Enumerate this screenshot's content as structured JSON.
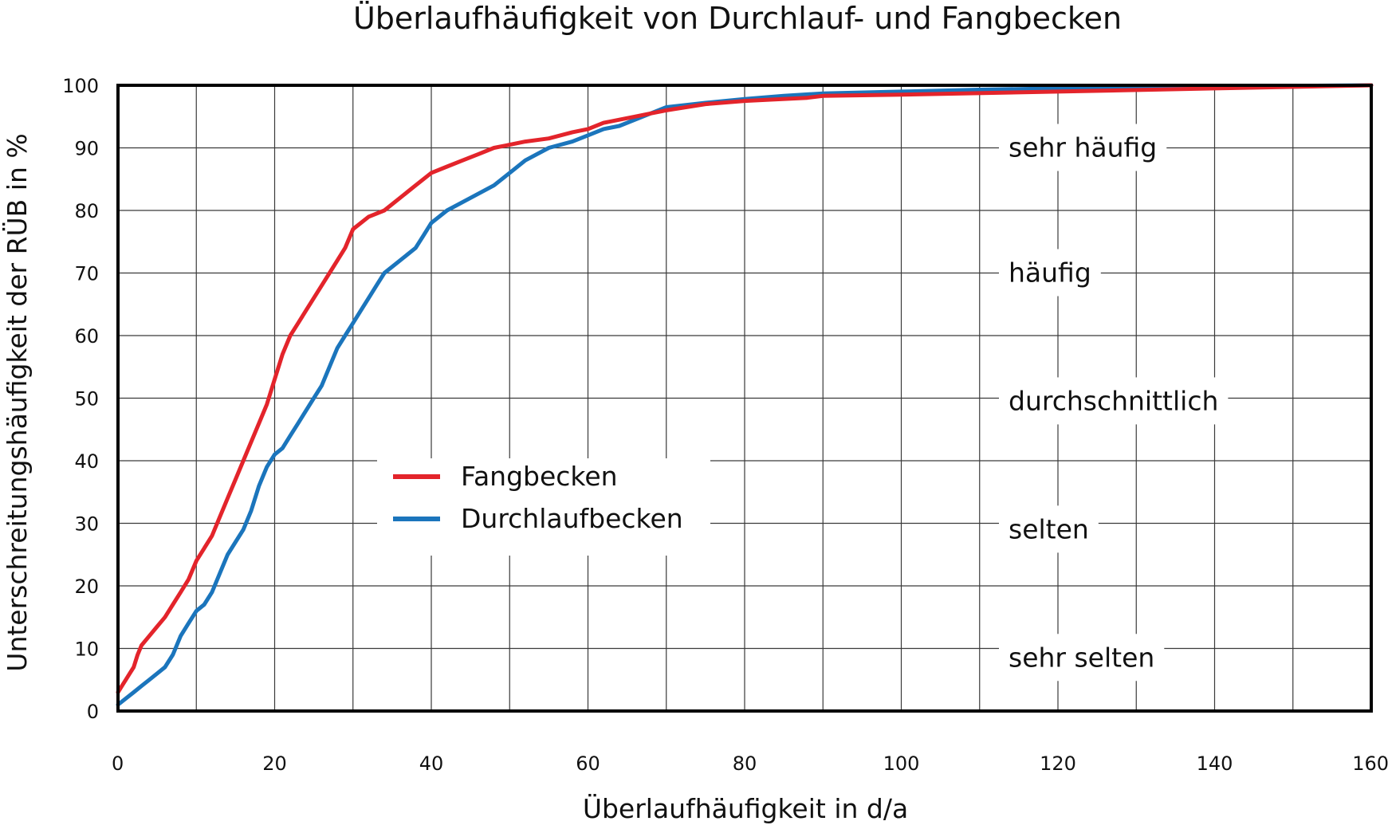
{
  "chart_data": {
    "type": "line",
    "title": "Überlaufhäufigkeit von Durchlauf- und Fangbecken",
    "xlabel": "Überlaufhäufigkeit in d/a",
    "ylabel": "Unterschreitungshäufigkeit der RÜB in %",
    "xlim": [
      0,
      160
    ],
    "ylim": [
      0,
      100
    ],
    "x_ticks": [
      "0",
      "20",
      "40",
      "60",
      "80",
      "100",
      "120",
      "140",
      "160"
    ],
    "y_ticks": [
      "0",
      "10",
      "20",
      "30",
      "40",
      "50",
      "60",
      "70",
      "80",
      "90",
      "100"
    ],
    "grid": true,
    "legend_placement": "center-left",
    "band_labels": [
      {
        "text": "sehr häufig",
        "y": 90
      },
      {
        "text": "häufig",
        "y": 70
      },
      {
        "text": "durchschnittlich",
        "y": 49.5
      },
      {
        "text": "selten",
        "y": 29
      },
      {
        "text": "sehr selten",
        "y": 8.5
      }
    ],
    "series": [
      {
        "name": "Fangbecken",
        "color": "#e3242b",
        "points": [
          [
            0,
            3
          ],
          [
            0.5,
            4
          ],
          [
            1,
            5
          ],
          [
            1.5,
            6
          ],
          [
            2,
            7
          ],
          [
            2.5,
            9
          ],
          [
            3,
            10.5
          ],
          [
            4,
            12
          ],
          [
            5,
            13.5
          ],
          [
            6,
            15
          ],
          [
            7,
            17
          ],
          [
            8,
            19
          ],
          [
            9,
            21
          ],
          [
            10,
            24
          ],
          [
            11,
            26
          ],
          [
            12,
            28
          ],
          [
            13,
            31
          ],
          [
            14,
            34
          ],
          [
            15,
            37
          ],
          [
            16,
            40
          ],
          [
            17,
            43
          ],
          [
            18,
            46
          ],
          [
            19,
            49
          ],
          [
            20,
            53
          ],
          [
            21,
            57
          ],
          [
            22,
            60
          ],
          [
            23,
            62
          ],
          [
            24,
            64
          ],
          [
            25,
            66
          ],
          [
            26,
            68
          ],
          [
            27,
            70
          ],
          [
            28,
            72
          ],
          [
            29,
            74
          ],
          [
            30,
            77
          ],
          [
            32,
            79
          ],
          [
            34,
            80
          ],
          [
            36,
            82
          ],
          [
            38,
            84
          ],
          [
            40,
            86
          ],
          [
            42,
            87
          ],
          [
            44,
            88
          ],
          [
            46,
            89
          ],
          [
            48,
            90
          ],
          [
            50,
            90.5
          ],
          [
            52,
            91
          ],
          [
            55,
            91.5
          ],
          [
            58,
            92.5
          ],
          [
            60,
            93
          ],
          [
            62,
            94
          ],
          [
            64,
            94.5
          ],
          [
            66,
            95
          ],
          [
            68,
            95.5
          ],
          [
            70,
            96
          ],
          [
            75,
            97
          ],
          [
            80,
            97.5
          ],
          [
            88,
            98
          ],
          [
            90,
            98.3
          ],
          [
            100,
            98.5
          ],
          [
            120,
            99
          ],
          [
            140,
            99.5
          ],
          [
            160,
            100
          ]
        ]
      },
      {
        "name": "Durchlaufbecken",
        "color": "#1b75bc",
        "points": [
          [
            0,
            1
          ],
          [
            1,
            2
          ],
          [
            2,
            3
          ],
          [
            3,
            4
          ],
          [
            4,
            5
          ],
          [
            5,
            6
          ],
          [
            6,
            7
          ],
          [
            7,
            9
          ],
          [
            8,
            12
          ],
          [
            9,
            14
          ],
          [
            10,
            16
          ],
          [
            11,
            17
          ],
          [
            12,
            19
          ],
          [
            13,
            22
          ],
          [
            14,
            25
          ],
          [
            15,
            27
          ],
          [
            16,
            29
          ],
          [
            17,
            32
          ],
          [
            18,
            36
          ],
          [
            19,
            39
          ],
          [
            20,
            41
          ],
          [
            21,
            42
          ],
          [
            22,
            44
          ],
          [
            23,
            46
          ],
          [
            24,
            48
          ],
          [
            25,
            50
          ],
          [
            26,
            52
          ],
          [
            27,
            55
          ],
          [
            28,
            58
          ],
          [
            29,
            60
          ],
          [
            30,
            62
          ],
          [
            31,
            64
          ],
          [
            32,
            66
          ],
          [
            33,
            68
          ],
          [
            34,
            70
          ],
          [
            36,
            72
          ],
          [
            38,
            74
          ],
          [
            39,
            76
          ],
          [
            40,
            78
          ],
          [
            42,
            80
          ],
          [
            45,
            82
          ],
          [
            48,
            84
          ],
          [
            50,
            86
          ],
          [
            52,
            88
          ],
          [
            55,
            90
          ],
          [
            58,
            91
          ],
          [
            60,
            92
          ],
          [
            62,
            93
          ],
          [
            64,
            93.5
          ],
          [
            66,
            94.5
          ],
          [
            68,
            95.5
          ],
          [
            70,
            96.5
          ],
          [
            75,
            97.2
          ],
          [
            80,
            97.8
          ],
          [
            85,
            98.3
          ],
          [
            90,
            98.7
          ],
          [
            100,
            99
          ],
          [
            110,
            99.3
          ],
          [
            120,
            99.5
          ],
          [
            140,
            99.8
          ],
          [
            160,
            100
          ]
        ]
      }
    ]
  }
}
